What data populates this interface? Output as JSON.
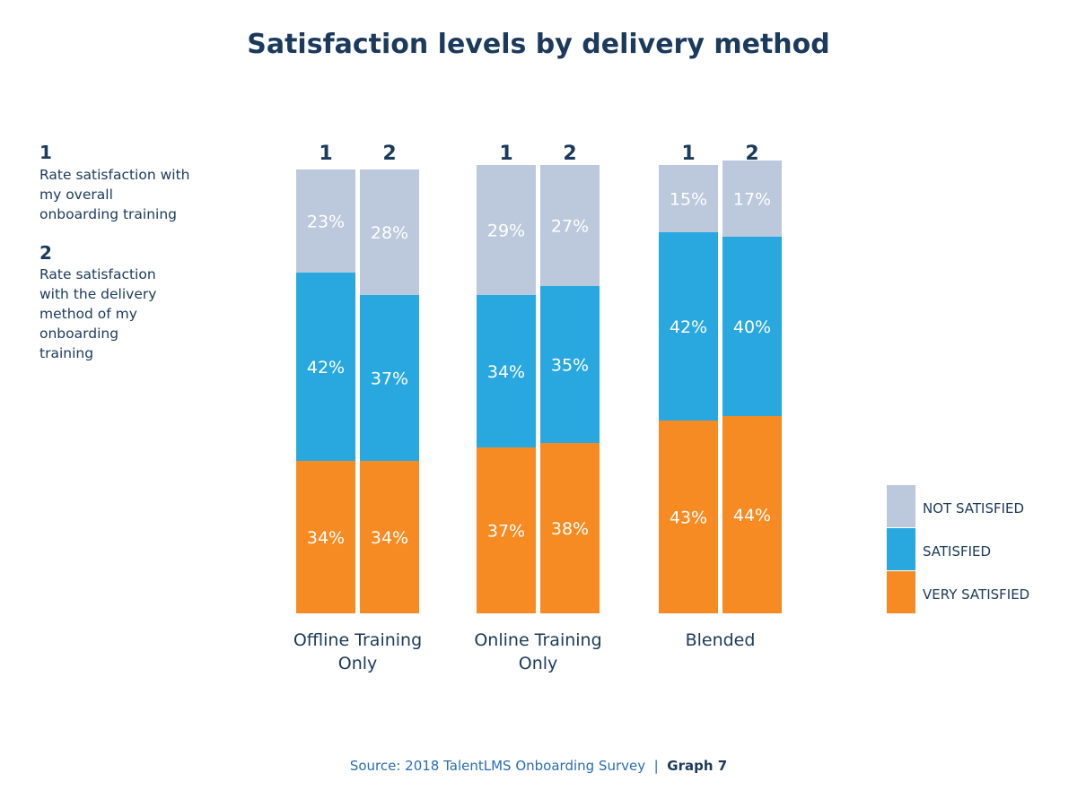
{
  "title": "Satisfaction levels by delivery method",
  "notes": [
    {
      "num": "1",
      "text": "Rate satisfaction with my overall onboarding training"
    },
    {
      "num": "2",
      "text": "Rate satisfaction with the delivery method of my onboarding training"
    }
  ],
  "source": {
    "text": "Source: 2018 TalentLMS Onboarding Survey",
    "separator": "|",
    "graph": "Graph 7"
  },
  "chart_data": {
    "type": "bar",
    "stacked": true,
    "title": "Satisfaction levels by delivery method",
    "categories": [
      "Offline Training Only",
      "Online Training Only",
      "Blended"
    ],
    "bar_labels": [
      "1",
      "2"
    ],
    "unit": "%",
    "legend_position": "bottom-right",
    "series": [
      {
        "name": "VERY SATISFIED",
        "color": "#f68b23",
        "values": [
          [
            34,
            34
          ],
          [
            37,
            38
          ],
          [
            43,
            44
          ]
        ]
      },
      {
        "name": "SATISFIED",
        "color": "#29a8e0",
        "values": [
          [
            42,
            37
          ],
          [
            34,
            35
          ],
          [
            42,
            40
          ]
        ]
      },
      {
        "name": "NOT SATISFIED",
        "color": "#bcc8dc",
        "values": [
          [
            23,
            28
          ],
          [
            29,
            27
          ],
          [
            15,
            17
          ]
        ]
      }
    ],
    "legend_order": [
      "NOT SATISFIED",
      "SATISFIED",
      "VERY SATISFIED"
    ]
  }
}
